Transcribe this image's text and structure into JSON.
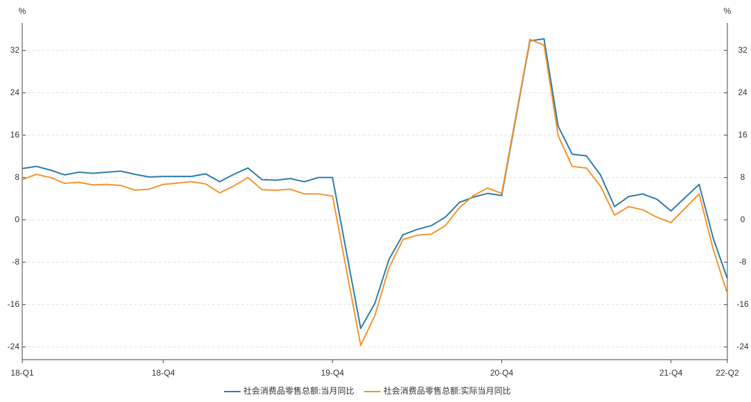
{
  "chart_data": {
    "type": "line",
    "y_label": "%",
    "y2_label": "%",
    "x": [
      "2018-02",
      "2018-03",
      "2018-04",
      "2018-05",
      "2018-06",
      "2018-07",
      "2018-08",
      "2018-09",
      "2018-10",
      "2018-11",
      "2018-12",
      "2019-02",
      "2019-03",
      "2019-04",
      "2019-05",
      "2019-06",
      "2019-07",
      "2019-08",
      "2019-09",
      "2019-10",
      "2019-11",
      "2019-12",
      "2020-02",
      "2020-03",
      "2020-04",
      "2020-05",
      "2020-06",
      "2020-07",
      "2020-08",
      "2020-09",
      "2020-10",
      "2020-11",
      "2020-12",
      "2021-02",
      "2021-03",
      "2021-04",
      "2021-05",
      "2021-06",
      "2021-07",
      "2021-08",
      "2021-09",
      "2021-10",
      "2021-11",
      "2021-12",
      "2022-02",
      "2022-03",
      "2022-04"
    ],
    "xlim": [
      "2018-02",
      "2022-04"
    ],
    "xticks": [
      {
        "value": "2018-02",
        "label": "18-Q1"
      },
      {
        "value": "2018-12",
        "label": "18-Q4"
      },
      {
        "value": "2019-12",
        "label": "19-Q4"
      },
      {
        "value": "2020-12",
        "label": "20-Q4"
      },
      {
        "value": "2021-12",
        "label": "21-Q4"
      },
      {
        "value": "2022-04",
        "label": "22-Q2"
      }
    ],
    "ylim": [
      -26.4,
      37.2
    ],
    "yticks": [
      -24,
      -16,
      -8,
      0,
      8,
      16,
      24,
      32
    ],
    "y2lim": [
      -26.4,
      37.2
    ],
    "y2ticks": [
      -24,
      -16,
      -8,
      0,
      8,
      16,
      24,
      32
    ],
    "grid": true,
    "legend": "bottom",
    "series": [
      {
        "name": "社会消费品零售总额:当月同比",
        "color": "#2e7ca9",
        "values": [
          9.7,
          10.1,
          9.4,
          8.5,
          9.0,
          8.8,
          9.0,
          9.2,
          8.6,
          8.1,
          8.2,
          8.2,
          8.7,
          7.2,
          8.6,
          9.8,
          7.6,
          7.5,
          7.8,
          7.2,
          8.0,
          8.0,
          -20.5,
          -15.8,
          -7.5,
          -2.8,
          -1.8,
          -1.1,
          0.5,
          3.3,
          4.3,
          5.0,
          4.6,
          33.8,
          34.2,
          17.7,
          12.4,
          12.1,
          8.5,
          2.5,
          4.4,
          4.9,
          3.9,
          1.7,
          6.7,
          -3.5,
          -11.1
        ]
      },
      {
        "name": "社会消费品零售总额:实际当月同比",
        "color": "#f4952c",
        "values": [
          7.6,
          8.6,
          8.0,
          6.9,
          7.1,
          6.6,
          6.7,
          6.5,
          5.6,
          5.8,
          6.7,
          7.2,
          6.8,
          5.1,
          6.4,
          8.0,
          5.7,
          5.6,
          5.8,
          4.9,
          4.9,
          4.5,
          -23.7,
          -18.1,
          -9.1,
          -3.7,
          -2.9,
          -2.7,
          -1.1,
          2.3,
          4.6,
          6.0,
          5.0,
          34.1,
          33.0,
          15.9,
          10.1,
          9.8,
          6.4,
          0.9,
          2.5,
          1.9,
          0.5,
          -0.5,
          4.9,
          -5.6,
          -13.9
        ]
      }
    ]
  }
}
